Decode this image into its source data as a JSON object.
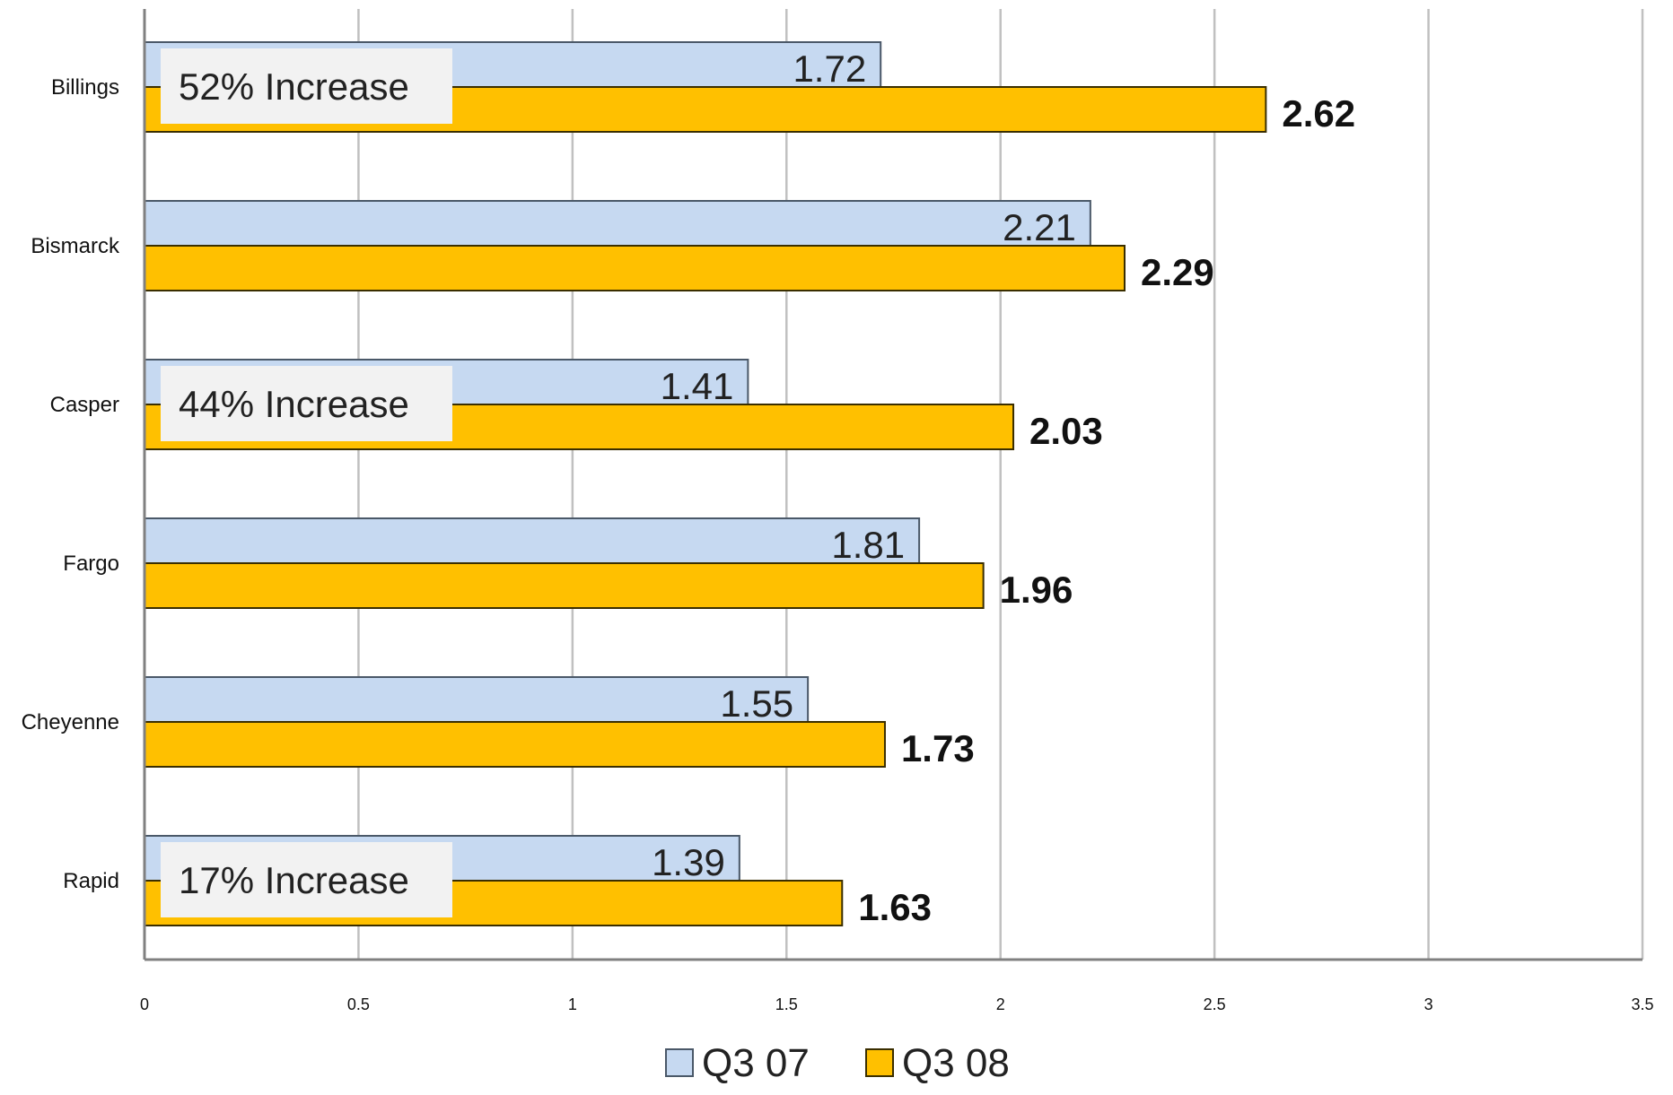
{
  "chart_data": {
    "type": "bar",
    "orientation": "horizontal",
    "categories": [
      "Billings",
      "Bismarck",
      "Casper",
      "Fargo",
      "Cheyenne",
      "Rapid"
    ],
    "series": [
      {
        "name": "Q3 07",
        "values": [
          1.72,
          2.21,
          1.41,
          1.81,
          1.55,
          1.39
        ],
        "color": "#c6d9f1"
      },
      {
        "name": "Q3 08",
        "values": [
          2.62,
          2.29,
          2.03,
          1.96,
          1.73,
          1.63
        ],
        "color": "#ffc000"
      }
    ],
    "value_labels": {
      "Q3 07": [
        "1.72",
        "2.21",
        "1.41",
        "1.81",
        "1.55",
        "1.39"
      ],
      "Q3 08": [
        "2.62",
        "2.29",
        "2.03",
        "1.96",
        "1.73",
        "1.63"
      ]
    },
    "xlim": [
      0,
      3.5
    ],
    "x_ticks": [
      0,
      0.5,
      1,
      1.5,
      2,
      2.5,
      3,
      3.5
    ],
    "x_tick_labels": [
      "0",
      "0.5",
      "1",
      "1.5",
      "2",
      "2.5",
      "3",
      "3.5"
    ],
    "grid": "vertical",
    "legend": {
      "position": "bottom-center",
      "entries": [
        "Q3 07",
        "Q3 08"
      ]
    },
    "annotations": [
      {
        "category": "Billings",
        "text": "52% Increase"
      },
      {
        "category": "Casper",
        "text": "44% Increase"
      },
      {
        "category": "Rapid",
        "text": "17% Increase"
      }
    ],
    "title": "",
    "xlabel": "",
    "ylabel": ""
  },
  "colors": {
    "series_a_fill": "#c6d9f1",
    "series_a_stroke": "#4a5868",
    "series_b_fill": "#ffc000",
    "series_b_stroke": "#3a2e00",
    "grid": "#c0c0c0",
    "axis": "#808080",
    "annotation_bg": "#f2f2f2"
  }
}
